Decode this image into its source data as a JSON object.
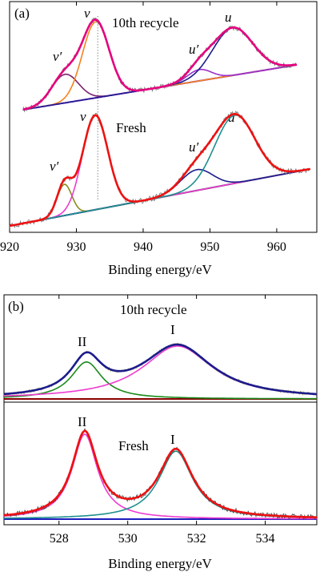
{
  "figure": {
    "panels": [
      {
        "panel_label": "(a)",
        "xlabel": "Binding energy/eV",
        "xlim": [
          920,
          966
        ],
        "xticks": [
          920,
          930,
          940,
          950,
          960
        ],
        "xticklabels": [
          "920",
          "930",
          "940",
          "950",
          "960"
        ],
        "reference_line_x": 933.2,
        "spectra": [
          {
            "label": "10th recycle",
            "peak_labels": [
              "v′",
              "v",
              "u′",
              "u"
            ]
          },
          {
            "label": "Fresh",
            "peak_labels": [
              "v′",
              "v",
              "u′",
              "u"
            ]
          }
        ]
      },
      {
        "panel_label": "(b)",
        "xlabel": "Binding energy/eV",
        "xlim": [
          526.4,
          535.5
        ],
        "xticks": [
          528,
          530,
          532,
          534
        ],
        "xticklabels": [
          "528",
          "530",
          "532",
          "534"
        ],
        "spectra": [
          {
            "label": "10th recycle",
            "peak_labels": [
              "II",
              "I"
            ]
          },
          {
            "label": "Fresh",
            "peak_labels": [
              "II",
              "I"
            ]
          }
        ]
      }
    ]
  },
  "chart_data": [
    {
      "type": "line",
      "xlabel": "Binding energy/eV",
      "ylabel": "",
      "xlim": [
        920,
        966
      ],
      "grid": false,
      "reference_line_x": 933.2,
      "spectra": [
        {
          "label": "10th recycle",
          "x_range": [
            922,
            963
          ],
          "baseline_endpoints": [
            [
              922,
              0.0
            ],
            [
              963,
              0.38
            ]
          ],
          "peaks": [
            {
              "label": "v′",
              "center": 928.3,
              "height": 0.33,
              "width": 2.0,
              "color": "#7b1f6e"
            },
            {
              "label": "v",
              "center": 932.9,
              "height": 0.88,
              "width": 2.0,
              "color": "#f4831f"
            },
            {
              "label": "u′",
              "center": 948.4,
              "height": 0.13,
              "width": 1.8,
              "color": "#9b2fc9"
            },
            {
              "label": "u",
              "center": 953.4,
              "height": 0.55,
              "width": 3.0,
              "color": "#1c1c8c"
            }
          ],
          "envelope_color": "#e6007e",
          "raw_color": "#777777",
          "baseline_color": "#8a2be2"
        },
        {
          "label": "Fresh",
          "x_range": [
            920,
            965
          ],
          "baseline_endpoints": [
            [
              920,
              0.0
            ],
            [
              965,
              0.58
            ]
          ],
          "peaks": [
            {
              "label": "v′",
              "center": 928.2,
              "height": 0.33,
              "width": 1.1,
              "color": "#8b8b1f"
            },
            {
              "label": "v",
              "center": 932.8,
              "height": 1.0,
              "width": 1.9,
              "color": "#ee3ad0"
            },
            {
              "label": "u′",
              "center": 948.0,
              "height": 0.22,
              "width": 2.4,
              "color": "#1c1c8c"
            },
            {
              "label": "u",
              "center": 953.7,
              "height": 0.72,
              "width": 3.0,
              "color": "#1f8f8f"
            }
          ],
          "envelope_color": "#ee1111",
          "raw_color": "#777777",
          "baseline_color": "#0a1a7a"
        }
      ]
    },
    {
      "type": "line",
      "xlabel": "Binding energy/eV",
      "ylabel": "",
      "xlim": [
        526.4,
        535.5
      ],
      "grid": false,
      "spectra": [
        {
          "label": "10th recycle",
          "x_range": [
            526.4,
            535.5
          ],
          "baseline_endpoints": [
            [
              526.4,
              0.0
            ],
            [
              535.5,
              0.0
            ]
          ],
          "peaks": [
            {
              "label": "II",
              "center": 528.8,
              "height": 0.7,
              "width": 0.55,
              "color": "#1a8a1a"
            },
            {
              "label": "I",
              "center": 531.45,
              "height": 1.0,
              "width": 1.25,
              "color": "#ee3ad0"
            }
          ],
          "envelope_color": "#1c1c8c",
          "raw_color": "#999933",
          "baseline_color": "#8b0000"
        },
        {
          "label": "Fresh",
          "x_range": [
            526.4,
            535.5
          ],
          "baseline_endpoints": [
            [
              526.4,
              0.0
            ],
            [
              535.5,
              0.0
            ]
          ],
          "peaks": [
            {
              "label": "II",
              "center": 528.75,
              "height": 1.0,
              "width": 0.45,
              "color": "#ee3ad0"
            },
            {
              "label": "I",
              "center": 531.4,
              "height": 0.8,
              "width": 0.6,
              "color": "#1f8f8f"
            }
          ],
          "envelope_color": "#ee1111",
          "raw_color": "#444444",
          "baseline_color": "#1c1cbf"
        }
      ]
    }
  ]
}
